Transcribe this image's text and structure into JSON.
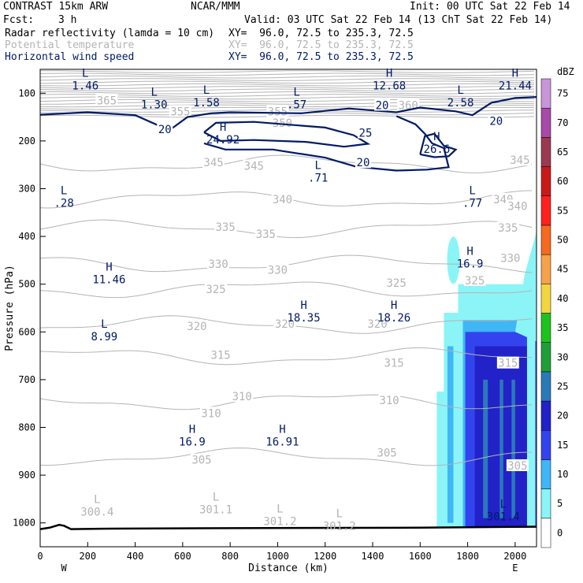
{
  "header": {
    "model": "CONTRAST 15km ARW",
    "center": "NCAR/MMM",
    "init": "Init: 00 UTC Sat 22 Feb 14",
    "fcst_label": "Fcst:",
    "fcst_value": "3 h",
    "valid": "Valid: 03 UTC Sat 22 Feb 14 (13 ChT Sat 22 Feb 14)"
  },
  "fields": [
    {
      "name": "Radar reflectivity (lamda = 10 cm)",
      "xy": "XY=  96.0, 72.5 to 235.3, 72.5",
      "color": "#000000"
    },
    {
      "name": "Potential temperature",
      "xy": "XY=  96.0, 72.5 to 235.3, 72.5",
      "color": "#b4b4b4"
    },
    {
      "name": "Horizontal wind speed",
      "xy": "XY=  96.0, 72.5 to 235.3, 72.5",
      "color": "#001a66"
    }
  ],
  "chart_data": {
    "type": "cross-section",
    "xlabel": "Distance (km)",
    "ylabel": "Pressure (hPa)",
    "xlim": [
      0,
      2090
    ],
    "ylim": [
      1050,
      50
    ],
    "x_ticks": [
      0,
      200,
      400,
      600,
      800,
      1000,
      1200,
      1400,
      1600,
      1800,
      2000
    ],
    "y_ticks": [
      100,
      200,
      300,
      400,
      500,
      600,
      700,
      800,
      900,
      1000
    ],
    "x_end_labels": {
      "left": "W",
      "right": "E"
    },
    "colorbar": {
      "unit": "dBZ",
      "levels": [
        0,
        5,
        10,
        15,
        20,
        25,
        30,
        35,
        40,
        45,
        50,
        55,
        60,
        65,
        70,
        75
      ],
      "colors": [
        "#ffffff",
        "#8bf4f7",
        "#3fb6f5",
        "#3344ee",
        "#2222c8",
        "#2a7ab8",
        "#1f9e3a",
        "#1ec21e",
        "#f2d640",
        "#f5a24a",
        "#f56a1f",
        "#ff2020",
        "#c81a1a",
        "#9a3a50",
        "#a84aa8",
        "#c896d8"
      ]
    },
    "theta_contours": [
      {
        "label": "365",
        "x": 280,
        "p": 115
      },
      {
        "label": "355",
        "x": 590,
        "p": 138
      },
      {
        "label": "355",
        "x": 1000,
        "p": 138
      },
      {
        "label": "350",
        "x": 1020,
        "p": 162
      },
      {
        "label": "360",
        "x": 1550,
        "p": 125
      },
      {
        "label": "345",
        "x": 730,
        "p": 245
      },
      {
        "label": "345",
        "x": 900,
        "p": 252
      },
      {
        "label": "345",
        "x": 2020,
        "p": 240
      },
      {
        "label": "340",
        "x": 1020,
        "p": 322
      },
      {
        "label": "340",
        "x": 1950,
        "p": 322
      },
      {
        "label": "340",
        "x": 2010,
        "p": 336
      },
      {
        "label": "335",
        "x": 780,
        "p": 380
      },
      {
        "label": "335",
        "x": 950,
        "p": 395
      },
      {
        "label": "335",
        "x": 1970,
        "p": 382
      },
      {
        "label": "330",
        "x": 750,
        "p": 458
      },
      {
        "label": "330",
        "x": 1000,
        "p": 470
      },
      {
        "label": "330",
        "x": 1980,
        "p": 445
      },
      {
        "label": "325",
        "x": 740,
        "p": 510
      },
      {
        "label": "325",
        "x": 1500,
        "p": 497
      },
      {
        "label": "325",
        "x": 1830,
        "p": 492
      },
      {
        "label": "320",
        "x": 660,
        "p": 588
      },
      {
        "label": "320",
        "x": 1030,
        "p": 583
      },
      {
        "label": "320",
        "x": 1420,
        "p": 583
      },
      {
        "label": "315",
        "x": 760,
        "p": 648
      },
      {
        "label": "315",
        "x": 1490,
        "p": 665
      },
      {
        "label": "315",
        "x": 1970,
        "p": 665
      },
      {
        "label": "310",
        "x": 720,
        "p": 770
      },
      {
        "label": "310",
        "x": 850,
        "p": 735
      },
      {
        "label": "310",
        "x": 1470,
        "p": 743
      },
      {
        "label": "305",
        "x": 680,
        "p": 868
      },
      {
        "label": "305",
        "x": 1460,
        "p": 853
      },
      {
        "label": "305",
        "x": 2010,
        "p": 880
      }
    ],
    "wind_contours": [
      {
        "label": "20",
        "x": 525,
        "p": 175
      },
      {
        "label": "20",
        "x": 1440,
        "p": 125
      },
      {
        "label": "20",
        "x": 1360,
        "p": 245
      },
      {
        "label": "25",
        "x": 1370,
        "p": 183
      },
      {
        "label": "20",
        "x": 1920,
        "p": 158
      }
    ],
    "annotations": [
      {
        "kind": "L",
        "value": "1.46",
        "x": 190,
        "p": 72,
        "series": "wind"
      },
      {
        "kind": "L",
        "value": "1.30",
        "x": 480,
        "p": 112,
        "series": "wind"
      },
      {
        "kind": "L",
        "value": "1.58",
        "x": 700,
        "p": 108,
        "series": "wind"
      },
      {
        "kind": "L",
        "value": ".57",
        "x": 1080,
        "p": 112,
        "series": "wind"
      },
      {
        "kind": "H",
        "value": "12.68",
        "x": 1470,
        "p": 72,
        "series": "wind"
      },
      {
        "kind": "L",
        "value": "2.58",
        "x": 1770,
        "p": 108,
        "series": "wind"
      },
      {
        "kind": "H",
        "value": "21.44",
        "x": 2000,
        "p": 72,
        "series": "wind"
      },
      {
        "kind": "H",
        "value": "24.92",
        "x": 770,
        "p": 185,
        "series": "wind"
      },
      {
        "kind": "H",
        "value": "26.6",
        "x": 1670,
        "p": 205,
        "series": "wind"
      },
      {
        "kind": "L",
        "value": ".71",
        "x": 1170,
        "p": 265,
        "series": "wind"
      },
      {
        "kind": "L",
        "value": ".28",
        "x": 100,
        "p": 318,
        "series": "wind"
      },
      {
        "kind": "L",
        "value": ".77",
        "x": 1820,
        "p": 318,
        "series": "wind"
      },
      {
        "kind": "H",
        "value": "16.9",
        "x": 1810,
        "p": 445,
        "series": "wind"
      },
      {
        "kind": "H",
        "value": "11.46",
        "x": 290,
        "p": 478,
        "series": "wind"
      },
      {
        "kind": "H",
        "value": "18.35",
        "x": 1110,
        "p": 558,
        "series": "wind"
      },
      {
        "kind": "H",
        "value": "18.26",
        "x": 1490,
        "p": 558,
        "series": "wind"
      },
      {
        "kind": "L",
        "value": "8.99",
        "x": 270,
        "p": 598,
        "series": "wind"
      },
      {
        "kind": "H",
        "value": "16.9",
        "x": 640,
        "p": 818,
        "series": "wind"
      },
      {
        "kind": "H",
        "value": "16.91",
        "x": 1020,
        "p": 818,
        "series": "wind"
      },
      {
        "kind": "L",
        "value": "300.4",
        "x": 240,
        "p": 965,
        "series": "theta"
      },
      {
        "kind": "L",
        "value": "301.1",
        "x": 740,
        "p": 960,
        "series": "theta"
      },
      {
        "kind": "L",
        "value": "301.2",
        "x": 1010,
        "p": 985,
        "series": "theta"
      },
      {
        "kind": "L",
        "value": "301.2",
        "x": 1260,
        "p": 995,
        "series": "theta"
      },
      {
        "kind": "L",
        "value": "301.4",
        "x": 1950,
        "p": 975,
        "series": "wind"
      }
    ]
  }
}
